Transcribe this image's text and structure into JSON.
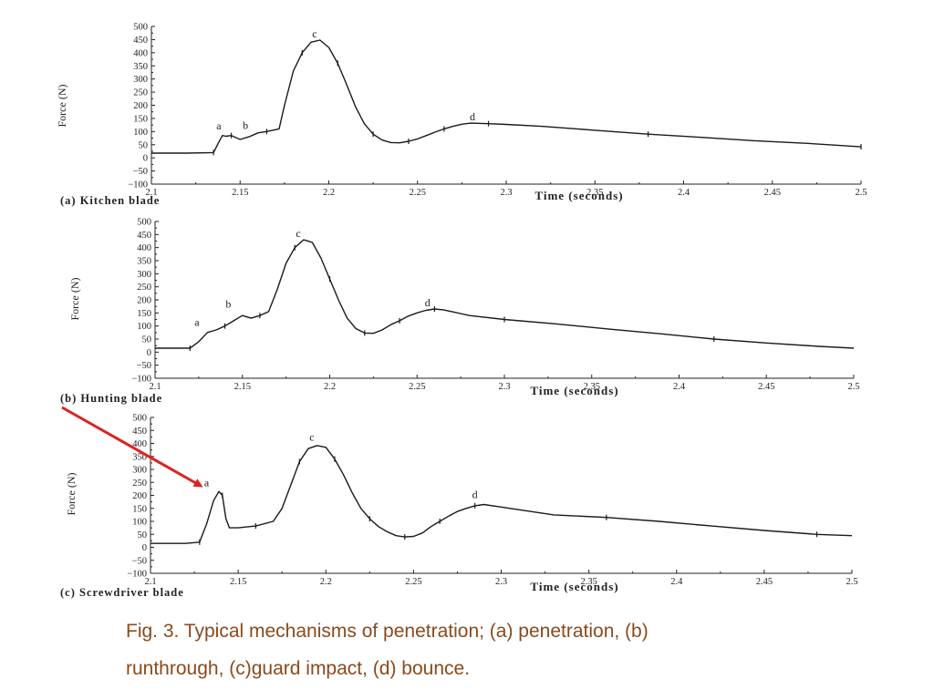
{
  "chart_data": [
    {
      "type": "line",
      "panel_caption": "(a) Kitchen blade",
      "xlabel": "Time (seconds)",
      "ylabel": "Force (N)",
      "xlim": [
        2.1,
        2.5
      ],
      "ylim": [
        -100,
        500
      ],
      "xticks": [
        "2.1",
        "2.15",
        "2.2",
        "2.25",
        "2.3",
        "2.35",
        "2.4",
        "2.45",
        "2.5"
      ],
      "yticks": [
        "500",
        "450",
        "400",
        "350",
        "300",
        "250",
        "200",
        "150",
        "100",
        "50",
        "0",
        "−50",
        "−100"
      ],
      "grid": false,
      "series": [
        {
          "x": [
            2.1,
            2.12,
            2.135,
            2.138,
            2.14,
            2.142,
            2.145,
            2.15,
            2.155,
            2.16,
            2.165,
            2.172,
            2.175,
            2.18,
            2.185,
            2.19,
            2.195,
            2.2,
            2.205,
            2.21,
            2.215,
            2.22,
            2.225,
            2.23,
            2.235,
            2.24,
            2.245,
            2.25,
            2.255,
            2.26,
            2.265,
            2.27,
            2.275,
            2.28,
            2.29,
            2.3,
            2.32,
            2.35,
            2.38,
            2.41,
            2.44,
            2.47,
            2.5
          ],
          "y": [
            18,
            18,
            20,
            60,
            85,
            82,
            85,
            70,
            80,
            95,
            100,
            110,
            200,
            330,
            400,
            440,
            448,
            420,
            360,
            280,
            195,
            130,
            90,
            68,
            58,
            57,
            63,
            72,
            85,
            98,
            110,
            120,
            128,
            132,
            130,
            127,
            120,
            105,
            90,
            78,
            65,
            55,
            42
          ]
        }
      ],
      "annotations": [
        {
          "label": "a",
          "x": 2.138,
          "y": 108
        },
        {
          "label": "b",
          "x": 2.153,
          "y": 110
        },
        {
          "label": "c",
          "x": 2.192,
          "y": 458
        },
        {
          "label": "d",
          "x": 2.281,
          "y": 142
        }
      ]
    },
    {
      "type": "line",
      "panel_caption": "(b) Hunting blade",
      "xlabel": "Time (seconds)",
      "ylabel": "Force (N)",
      "xlim": [
        2.1,
        2.5
      ],
      "ylim": [
        -100,
        500
      ],
      "xticks": [
        "2.1",
        "2.15",
        "2.2",
        "2.25",
        "2.3",
        "2.35",
        "2.4",
        "2.45",
        "2.5"
      ],
      "yticks": [
        "500",
        "450",
        "400",
        "350",
        "300",
        "250",
        "200",
        "150",
        "100",
        "50",
        "0",
        "−50",
        "−100"
      ],
      "grid": false,
      "series": [
        {
          "x": [
            2.1,
            2.11,
            2.12,
            2.125,
            2.13,
            2.135,
            2.14,
            2.145,
            2.15,
            2.155,
            2.16,
            2.165,
            2.17,
            2.175,
            2.18,
            2.185,
            2.19,
            2.195,
            2.2,
            2.205,
            2.21,
            2.215,
            2.22,
            2.225,
            2.23,
            2.235,
            2.24,
            2.245,
            2.25,
            2.255,
            2.26,
            2.265,
            2.27,
            2.28,
            2.3,
            2.33,
            2.36,
            2.39,
            2.42,
            2.45,
            2.48,
            2.5
          ],
          "y": [
            15,
            15,
            15,
            40,
            75,
            85,
            100,
            120,
            140,
            130,
            140,
            155,
            240,
            340,
            400,
            430,
            420,
            360,
            280,
            200,
            130,
            90,
            73,
            72,
            85,
            105,
            120,
            138,
            150,
            160,
            165,
            162,
            155,
            140,
            125,
            108,
            88,
            70,
            50,
            35,
            22,
            15
          ]
        }
      ],
      "annotations": [
        {
          "label": "a",
          "x": 2.124,
          "y": 100
        },
        {
          "label": "b",
          "x": 2.142,
          "y": 170
        },
        {
          "label": "c",
          "x": 2.182,
          "y": 440
        },
        {
          "label": "d",
          "x": 2.256,
          "y": 176
        }
      ]
    },
    {
      "type": "line",
      "panel_caption": "(c) Screwdriver blade",
      "xlabel": "Time (seconds)",
      "ylabel": "Force (N)",
      "xlim": [
        2.1,
        2.5
      ],
      "ylim": [
        -100,
        500
      ],
      "xticks": [
        "2.1",
        "2.15",
        "2.2",
        "2.25",
        "2.3",
        "2.35",
        "2.4",
        "2.45",
        "2.5"
      ],
      "yticks": [
        "500",
        "450",
        "400",
        "350",
        "300",
        "250",
        "200",
        "150",
        "100",
        "50",
        "0",
        "−50",
        "−100"
      ],
      "grid": false,
      "series": [
        {
          "x": [
            2.1,
            2.12,
            2.128,
            2.132,
            2.136,
            2.139,
            2.141,
            2.143,
            2.145,
            2.15,
            2.16,
            2.17,
            2.175,
            2.18,
            2.185,
            2.19,
            2.195,
            2.2,
            2.205,
            2.21,
            2.215,
            2.22,
            2.225,
            2.23,
            2.235,
            2.24,
            2.245,
            2.25,
            2.255,
            2.26,
            2.265,
            2.27,
            2.275,
            2.28,
            2.285,
            2.29,
            2.3,
            2.33,
            2.36,
            2.39,
            2.42,
            2.45,
            2.48,
            2.5
          ],
          "y": [
            15,
            15,
            20,
            90,
            180,
            215,
            200,
            110,
            75,
            75,
            82,
            100,
            150,
            240,
            330,
            380,
            392,
            385,
            340,
            280,
            210,
            150,
            110,
            80,
            60,
            45,
            40,
            42,
            55,
            80,
            100,
            120,
            138,
            150,
            160,
            165,
            155,
            125,
            115,
            100,
            82,
            65,
            50,
            45
          ]
        }
      ],
      "annotations": [
        {
          "label": "a",
          "x": 2.132,
          "y": 235
        },
        {
          "label": "c",
          "x": 2.192,
          "y": 410
        },
        {
          "label": "d",
          "x": 2.285,
          "y": 190
        }
      ]
    }
  ],
  "caption": {
    "line1": "Fig. 3. Typical mechanisms of penetration; (a) penetration, (b)",
    "line2": "runthrough, (c)guard impact, (d) bounce."
  },
  "colors": {
    "line": "#1a1a1a",
    "arrow": "#e02020",
    "caption": "#8a4a1c"
  }
}
